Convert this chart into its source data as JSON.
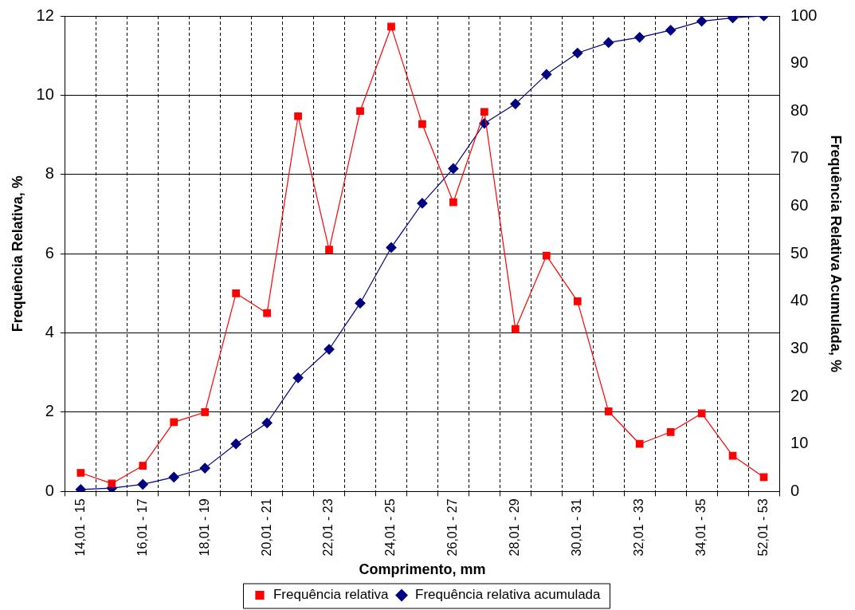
{
  "chart_data": {
    "type": "line",
    "xlabel": "Comprimento, mm",
    "ylabel": "Frequência Relativa, %",
    "y2label": "Frequência Relativa Acumulada, %",
    "categories": [
      "14,01 - 15",
      null,
      "16,01 - 17",
      null,
      "18,01 - 19",
      null,
      "20,01 - 21",
      null,
      "22,01 - 23",
      null,
      "24,01 - 25",
      null,
      "26,01 - 27",
      null,
      "28,01 - 29",
      null,
      "30,01 - 31",
      null,
      "32,01 - 33",
      null,
      "34,01 - 35",
      null,
      "52,01 - 53"
    ],
    "series": [
      {
        "name": "Frequência relativa",
        "color": "#ff0000",
        "marker": "square",
        "values": [
          0.47,
          0.2,
          0.65,
          1.75,
          2.0,
          5.0,
          4.5,
          9.47,
          6.1,
          9.6,
          11.73,
          9.27,
          7.3,
          9.58,
          4.1,
          5.95,
          4.8,
          2.02,
          1.2,
          1.5,
          1.97,
          0.9,
          0.36
        ]
      },
      {
        "name": "Frequência relativa acumulada",
        "color": "#000080",
        "marker": "diamond",
        "axis": "y2",
        "values": [
          0.4,
          0.7,
          1.5,
          3.0,
          4.9,
          10.0,
          14.4,
          23.9,
          29.9,
          39.6,
          51.3,
          60.6,
          67.9,
          77.4,
          81.5,
          87.7,
          92.2,
          94.4,
          95.5,
          97.0,
          98.9,
          99.6,
          100
        ]
      }
    ],
    "ylim": [
      0,
      12
    ],
    "yticks": [
      0,
      2,
      4,
      6,
      8,
      10,
      12
    ],
    "y2lim": [
      0,
      100
    ],
    "y2ticks": [
      0,
      10,
      20,
      30,
      40,
      50,
      60,
      70,
      80,
      90,
      100
    ],
    "grid": true,
    "legend": "bottom",
    "line_style": "solid"
  }
}
